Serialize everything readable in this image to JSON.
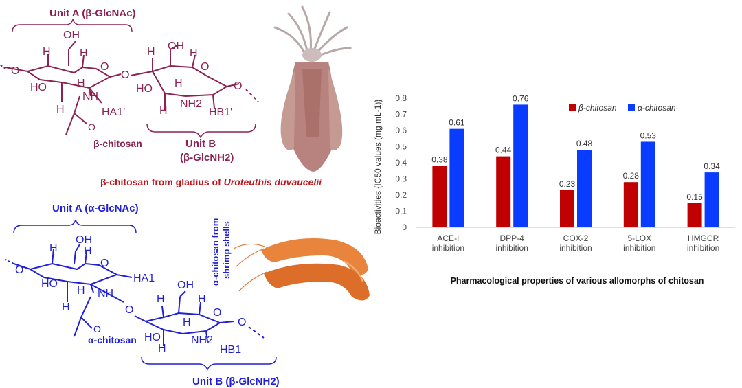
{
  "colors": {
    "beta": "#8B2252",
    "alpha": "#1f1fd6",
    "caption_red": "#c0141c",
    "bar_beta": "#c00000",
    "bar_alpha": "#0a3cff"
  },
  "beta_structure": {
    "unit_a_title": "Unit A (β-GlcNAc)",
    "unit_b_title": "Unit B",
    "unit_b_sub": "(β-GlcNH2)",
    "name": "β-chitosan",
    "atom_oh1": "OH",
    "atom_oh2": "OH",
    "atom_ho1": "HO",
    "atom_ho2": "HO",
    "atom_nh": "NH",
    "atom_nh2": "NH2",
    "atom_ha": "HA1'",
    "atom_hb": "HB1'",
    "atom_o": "O",
    "atom_h": "H",
    "caption_prefix": "β-chitosan from gladius of ",
    "caption_species": "Uroteuthis duvaucelii"
  },
  "alpha_structure": {
    "unit_a_title": "Unit A (α-GlcNAc)",
    "unit_b_title": "Unit B (β-GlcNH2)",
    "name": "α-chitosan",
    "atom_oh1": "OH",
    "atom_oh2": "OH",
    "atom_ho1": "HO",
    "atom_ho2": "HO",
    "atom_nh": "NH",
    "atom_nh2": "NH2",
    "atom_ha": "HA1",
    "atom_hb": "HB1",
    "atom_o": "O",
    "atom_h": "H",
    "shrimp_label_1": "α-chitosan from",
    "shrimp_label_2": "shrimp shells"
  },
  "chart_data": {
    "type": "bar",
    "title": "Pharmacological properties of various allomorphs of chitosan",
    "ylabel": "Bioactivities {IC50 values (mg mL-1)}",
    "xlabel": "",
    "ylim": [
      0,
      0.8
    ],
    "yticks": [
      "0",
      "0.1",
      "0.2",
      "0.3",
      "0.4",
      "0.5",
      "0.6",
      "0.7",
      "0.8"
    ],
    "categories": [
      [
        "ACE-I",
        "inhibition"
      ],
      [
        "DPP-4",
        "inhibition"
      ],
      [
        "COX-2",
        "inhibition"
      ],
      [
        "5-LOX",
        "inhibition"
      ],
      [
        "HMGCR",
        "inhibition"
      ]
    ],
    "series": [
      {
        "name": "β-chitosan",
        "values": [
          0.38,
          0.44,
          0.23,
          0.28,
          0.15
        ],
        "labels": [
          "0.38",
          "0.44",
          "0.23",
          "0.28",
          "0.15"
        ]
      },
      {
        "name": "α-chitosan",
        "values": [
          0.61,
          0.76,
          0.48,
          0.53,
          0.34
        ],
        "labels": [
          "0.61",
          "0.76",
          "0.48",
          "0.53",
          "0.34"
        ]
      }
    ],
    "legend": "top-right"
  }
}
